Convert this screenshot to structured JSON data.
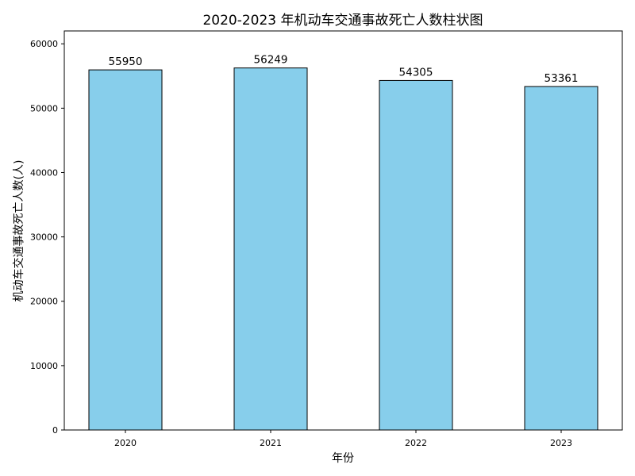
{
  "chart_data": {
    "type": "bar",
    "title": "2020-2023 年机动车交通事故死亡人数柱状图",
    "xlabel": "年份",
    "ylabel": "机动车交通事故死亡人数(人)",
    "categories": [
      "2020",
      "2021",
      "2022",
      "2023"
    ],
    "values": [
      55950,
      56249,
      54305,
      53361
    ],
    "data_labels": [
      "55950",
      "56249",
      "54305",
      "53361"
    ],
    "ylim": [
      0,
      62000
    ],
    "yticks": [
      0,
      10000,
      20000,
      30000,
      40000,
      50000,
      60000
    ],
    "ytick_labels": [
      "0",
      "10000",
      "20000",
      "30000",
      "40000",
      "50000",
      "60000"
    ],
    "grid": false,
    "bar_color": "#87CEEB",
    "bar_edge_color": "#000000"
  }
}
